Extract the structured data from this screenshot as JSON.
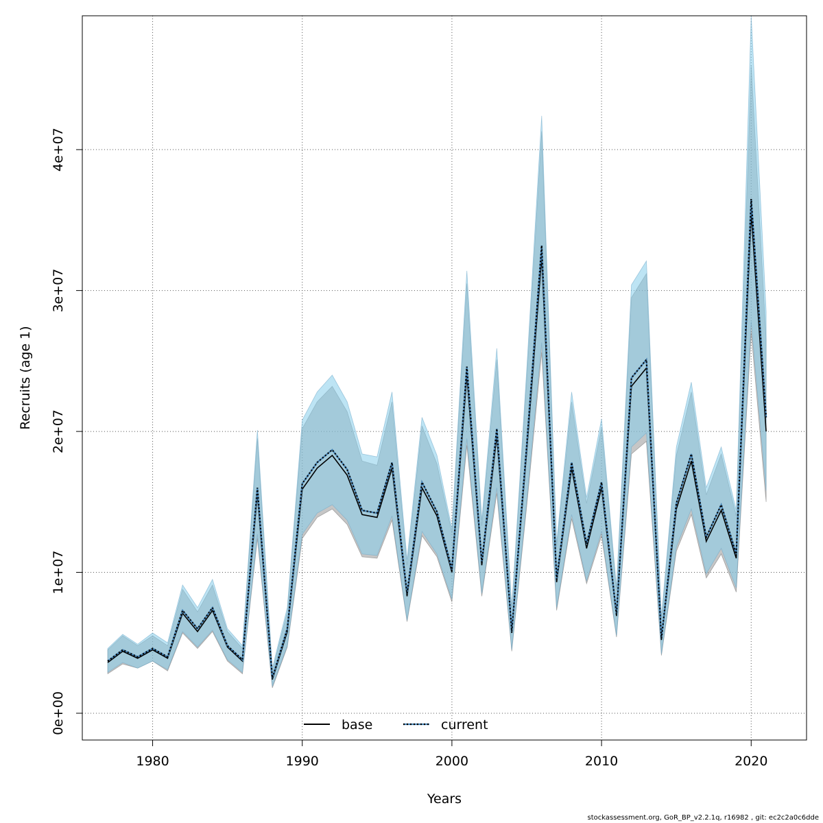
{
  "chart_data": {
    "type": "line",
    "xlabel": "Years",
    "ylabel": "Recruits (age 1)",
    "xlim": [
      1975.3,
      2023.7
    ],
    "ylim": [
      -1900000,
      49500000
    ],
    "x_ticks": [
      1980,
      1990,
      2000,
      2010,
      2020
    ],
    "y_ticks": [
      {
        "value": 0,
        "label": "0e+00"
      },
      {
        "value": 10000000,
        "label": "1e+07"
      },
      {
        "value": 20000000,
        "label": "2e+07"
      },
      {
        "value": 30000000,
        "label": "3e+07"
      },
      {
        "value": 40000000,
        "label": "4e+07"
      }
    ],
    "grid": true,
    "legend_position": "bottom-center",
    "colors": {
      "base_line": "#000000",
      "base_band": "#808080",
      "current_line": "#4682b4",
      "current_dots": "#000000",
      "current_band": "#87ceeb"
    },
    "x": [
      1977,
      1978,
      1979,
      1980,
      1981,
      1982,
      1983,
      1984,
      1985,
      1986,
      1987,
      1988,
      1989,
      1990,
      1991,
      1992,
      1993,
      1994,
      1995,
      1996,
      1997,
      1998,
      1999,
      2000,
      2001,
      2002,
      2003,
      2004,
      2005,
      2006,
      2007,
      2008,
      2009,
      2010,
      2011,
      2012,
      2013,
      2014,
      2015,
      2016,
      2017,
      2018,
      2019,
      2020,
      2021
    ],
    "series": [
      {
        "name": "base",
        "values": [
          3600000,
          4400000,
          3900000,
          4500000,
          3900000,
          7100000,
          5800000,
          7300000,
          4700000,
          3700000,
          15600000,
          2400000,
          5800000,
          15900000,
          17400000,
          18300000,
          16900000,
          14100000,
          13900000,
          17400000,
          8300000,
          16000000,
          14000000,
          10000000,
          24000000,
          10500000,
          19700000,
          5700000,
          18600000,
          32400000,
          9300000,
          17400000,
          11700000,
          16000000,
          6900000,
          23200000,
          24500000,
          5200000,
          14500000,
          17900000,
          12200000,
          14400000,
          11000000,
          35500000,
          20000000
        ],
        "lower": [
          2800000,
          3500000,
          3200000,
          3700000,
          3000000,
          5700000,
          4600000,
          5800000,
          3700000,
          2800000,
          12400000,
          1800000,
          4700000,
          12400000,
          13900000,
          14500000,
          13400000,
          11100000,
          11000000,
          13700000,
          6500000,
          12600000,
          11100000,
          7900000,
          19000000,
          8300000,
          15600000,
          4400000,
          14700000,
          25600000,
          7300000,
          13800000,
          9200000,
          12600000,
          5400000,
          18400000,
          19300000,
          4100000,
          11500000,
          14100000,
          9600000,
          11300000,
          8600000,
          27000000,
          15000000
        ],
        "upper": [
          4500000,
          5500000,
          4800000,
          5500000,
          4800000,
          8800000,
          7200000,
          9100000,
          5800000,
          4600000,
          19500000,
          3000000,
          7200000,
          20200000,
          22100000,
          23200000,
          21400000,
          17900000,
          17600000,
          22100000,
          10500000,
          20400000,
          17700000,
          12800000,
          30500000,
          13300000,
          25100000,
          7300000,
          23700000,
          41300000,
          11800000,
          22100000,
          14900000,
          20300000,
          8700000,
          29500000,
          31200000,
          6600000,
          18300000,
          22800000,
          15500000,
          18400000,
          14000000,
          46000000,
          26500000
        ]
      },
      {
        "name": "current",
        "values": [
          3700000,
          4500000,
          4000000,
          4600000,
          4000000,
          7300000,
          6000000,
          7500000,
          4800000,
          3800000,
          16000000,
          2500000,
          6000000,
          16300000,
          17800000,
          18700000,
          17300000,
          14400000,
          14200000,
          17800000,
          8500000,
          16400000,
          14300000,
          10200000,
          24600000,
          10700000,
          20200000,
          5800000,
          19000000,
          33200000,
          9500000,
          17800000,
          12000000,
          16400000,
          7000000,
          23800000,
          25100000,
          5300000,
          14900000,
          18400000,
          12500000,
          14800000,
          11300000,
          36500000,
          21000000
        ],
        "lower": [
          2900000,
          3600000,
          3200000,
          3700000,
          3100000,
          5800000,
          4700000,
          5900000,
          3800000,
          2900000,
          12700000,
          1900000,
          4800000,
          12700000,
          14200000,
          14800000,
          13700000,
          11300000,
          11200000,
          14000000,
          6600000,
          12900000,
          11300000,
          8100000,
          19500000,
          8500000,
          16000000,
          4500000,
          15100000,
          26300000,
          7500000,
          14100000,
          9400000,
          12900000,
          5500000,
          18900000,
          19900000,
          4200000,
          11800000,
          14500000,
          9900000,
          11700000,
          8900000,
          27800000,
          15800000
        ],
        "upper": [
          4600000,
          5600000,
          4900000,
          5700000,
          5000000,
          9100000,
          7500000,
          9500000,
          6000000,
          4800000,
          20100000,
          3200000,
          7500000,
          20800000,
          22800000,
          24000000,
          22100000,
          18400000,
          18200000,
          22800000,
          10900000,
          21000000,
          18300000,
          13100000,
          31400000,
          13700000,
          25900000,
          7500000,
          24400000,
          42400000,
          12100000,
          22800000,
          15300000,
          20900000,
          8900000,
          30400000,
          32100000,
          6800000,
          18900000,
          23500000,
          16000000,
          18900000,
          14400000,
          49500000,
          28500000
        ]
      }
    ]
  },
  "footer": {
    "credit": "stockassessment.org, GoR_BP_v2.2.1q, r16982 , git: ec2c2a0c6dde"
  }
}
